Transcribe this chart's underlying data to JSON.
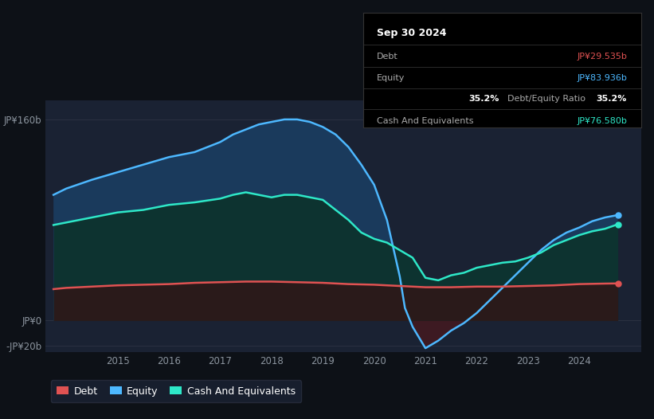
{
  "bg_color": "#0d1117",
  "plot_bg_color": "#1a2233",
  "grid_color": "#2a3040",
  "ylim": [
    -25,
    175
  ],
  "xlim": [
    2013.6,
    2025.2
  ],
  "yticks_vals": [
    -20,
    0,
    160
  ],
  "yticks_labels": [
    "-JP¥20b",
    "JP¥0",
    "JP¥160b"
  ],
  "xticks_vals": [
    2015,
    2016,
    2017,
    2018,
    2019,
    2020,
    2021,
    2022,
    2023,
    2024
  ],
  "legend_items": [
    {
      "label": "Debt",
      "color": "#e05252"
    },
    {
      "label": "Equity",
      "color": "#4db8ff"
    },
    {
      "label": "Cash And Equivalents",
      "color": "#2ee8c8"
    }
  ],
  "tooltip": {
    "title": "Sep 30 2024",
    "rows": [
      {
        "label": "Debt",
        "value": "JP¥29.535b",
        "value_color": "#e05252"
      },
      {
        "label": "Equity",
        "value": "JP¥83.936b",
        "value_color": "#4db8ff"
      },
      {
        "label": "",
        "value": "35.2% Debt/Equity Ratio",
        "value_color": "#ffffff",
        "bold_prefix": "35.2%"
      },
      {
        "label": "Cash And Equivalents",
        "value": "JP¥76.580b",
        "value_color": "#2ee8c8"
      }
    ]
  },
  "equity_x": [
    2013.75,
    2014.0,
    2014.5,
    2015.0,
    2015.5,
    2016.0,
    2016.5,
    2017.0,
    2017.25,
    2017.5,
    2017.75,
    2018.0,
    2018.25,
    2018.5,
    2018.75,
    2019.0,
    2019.25,
    2019.5,
    2019.75,
    2020.0,
    2020.25,
    2020.5,
    2020.6,
    2020.75,
    2021.0,
    2021.25,
    2021.5,
    2021.75,
    2022.0,
    2022.25,
    2022.5,
    2022.75,
    2023.0,
    2023.25,
    2023.5,
    2023.75,
    2024.0,
    2024.25,
    2024.5,
    2024.75
  ],
  "equity_y": [
    100,
    105,
    112,
    118,
    124,
    130,
    134,
    142,
    148,
    152,
    156,
    158,
    160,
    160,
    158,
    154,
    148,
    138,
    124,
    108,
    80,
    35,
    10,
    -5,
    -22,
    -16,
    -8,
    -2,
    6,
    16,
    26,
    36,
    46,
    56,
    64,
    70,
    74,
    79,
    82,
    83.936
  ],
  "cash_x": [
    2013.75,
    2014.0,
    2014.5,
    2015.0,
    2015.5,
    2016.0,
    2016.5,
    2017.0,
    2017.25,
    2017.5,
    2017.75,
    2018.0,
    2018.25,
    2018.5,
    2018.75,
    2019.0,
    2019.25,
    2019.5,
    2019.75,
    2020.0,
    2020.25,
    2020.5,
    2020.75,
    2021.0,
    2021.25,
    2021.5,
    2021.75,
    2022.0,
    2022.25,
    2022.5,
    2022.75,
    2023.0,
    2023.25,
    2023.5,
    2023.75,
    2024.0,
    2024.25,
    2024.5,
    2024.75
  ],
  "cash_y": [
    76,
    78,
    82,
    86,
    88,
    92,
    94,
    97,
    100,
    102,
    100,
    98,
    100,
    100,
    98,
    96,
    88,
    80,
    70,
    65,
    62,
    56,
    50,
    34,
    32,
    36,
    38,
    42,
    44,
    46,
    47,
    50,
    54,
    60,
    64,
    68,
    71,
    73,
    76.58
  ],
  "debt_x": [
    2013.75,
    2014.0,
    2014.5,
    2015.0,
    2015.5,
    2016.0,
    2016.5,
    2017.0,
    2017.5,
    2018.0,
    2018.5,
    2019.0,
    2019.5,
    2020.0,
    2020.5,
    2021.0,
    2021.5,
    2022.0,
    2022.5,
    2023.0,
    2023.5,
    2024.0,
    2024.5,
    2024.75
  ],
  "debt_y": [
    25,
    26,
    27,
    28,
    28.5,
    29,
    30,
    30.5,
    31,
    31,
    30.5,
    30,
    29,
    28.5,
    27.5,
    26.5,
    26.5,
    27,
    27,
    27.5,
    28,
    29,
    29.4,
    29.535
  ]
}
